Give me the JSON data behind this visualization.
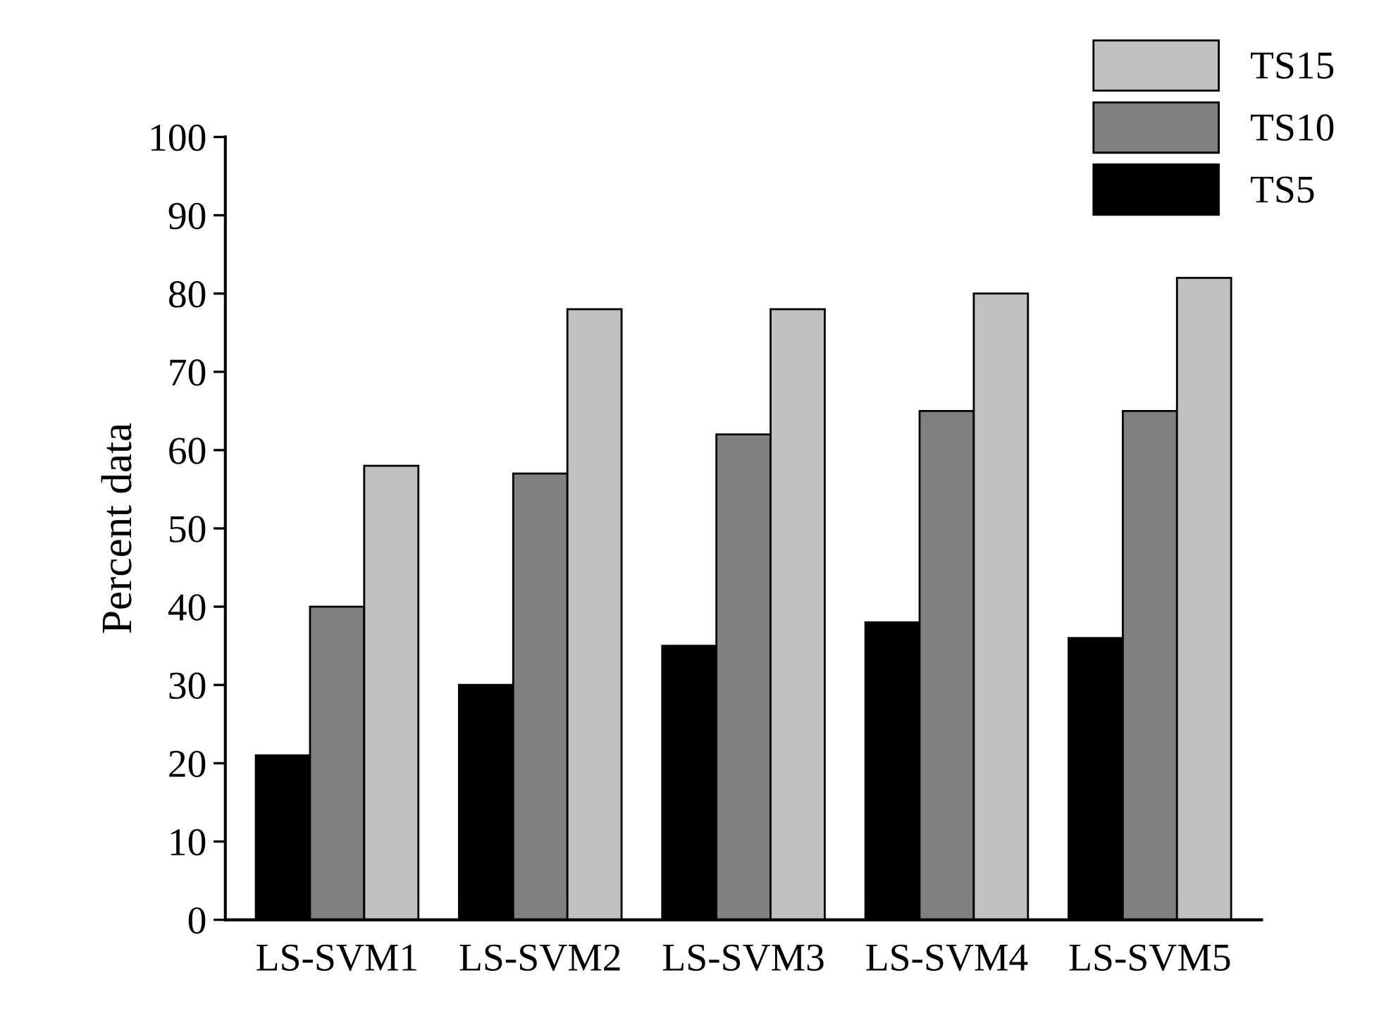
{
  "chart_data": {
    "type": "bar",
    "ylabel": "Percent data",
    "categories": [
      "LS-SVM1",
      "LS-SVM2",
      "LS-SVM3",
      "LS-SVM4",
      "LS-SVM5"
    ],
    "series": [
      {
        "name": "TS5",
        "color": "#000000",
        "values": [
          21,
          30,
          35,
          38,
          36
        ]
      },
      {
        "name": "TS10",
        "color": "#808080",
        "values": [
          40,
          57,
          62,
          65,
          65
        ]
      },
      {
        "name": "TS15",
        "color": "#c0c0c0",
        "values": [
          58,
          78,
          78,
          80,
          82
        ]
      }
    ],
    "ylim": [
      0,
      100
    ],
    "yticks": [
      0,
      10,
      20,
      30,
      40,
      50,
      60,
      70,
      80,
      90,
      100
    ],
    "grid": false,
    "legend": "top right"
  }
}
